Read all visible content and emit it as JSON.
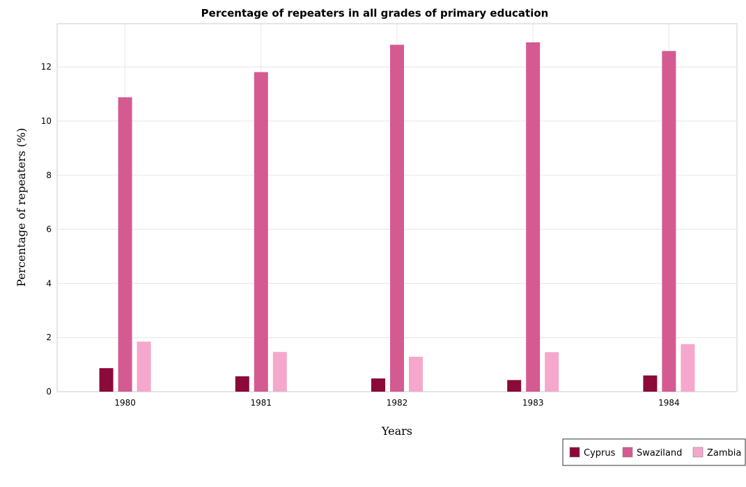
{
  "chart_data": {
    "type": "bar",
    "title": "Percentage of repeaters in all grades of primary education",
    "xlabel": "Years",
    "ylabel": "Percentage of repeaters (%)",
    "categories": [
      "1980",
      "1981",
      "1982",
      "1983",
      "1984"
    ],
    "ylim": [
      0,
      13.6
    ],
    "yticks": [
      0,
      2,
      4,
      6,
      8,
      10,
      12
    ],
    "grid": true,
    "legend_position": "bottom-right",
    "series": [
      {
        "name": "Cyprus",
        "color": "#8b0a3a",
        "values": [
          0.87,
          0.57,
          0.49,
          0.43,
          0.6
        ]
      },
      {
        "name": "Swaziland",
        "color": "#d45b91",
        "values": [
          10.88,
          11.81,
          12.82,
          12.91,
          12.59
        ]
      },
      {
        "name": "Zambia",
        "color": "#f5a8cc",
        "values": [
          1.85,
          1.47,
          1.29,
          1.46,
          1.76
        ]
      }
    ]
  }
}
